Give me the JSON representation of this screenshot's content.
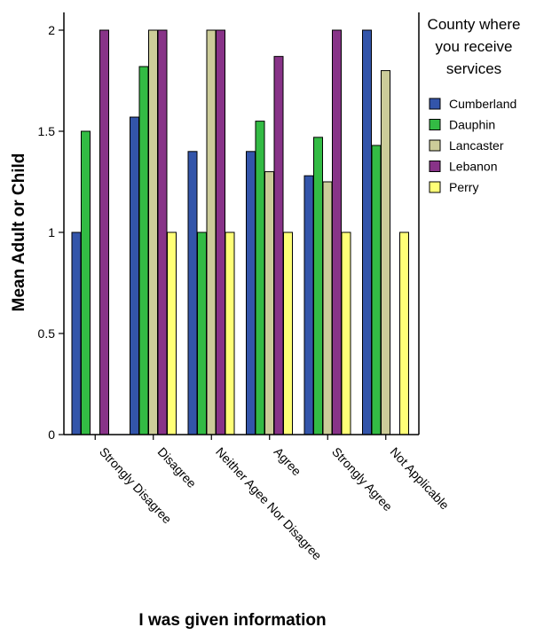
{
  "chart_data": {
    "type": "bar",
    "xlabel": "I was given information",
    "ylabel": "Mean Adult or Child",
    "ylim": [
      0,
      2.1
    ],
    "yticks": [
      "0",
      "0.5",
      "1",
      "1.5",
      "2"
    ],
    "categories": [
      "Strongly Disagree",
      "Disagree",
      "Neither Agee Nor Disagree",
      "Agree",
      "Strongly Agree",
      "Not Applicable"
    ],
    "legend": {
      "title_lines": [
        "County where",
        "you receive",
        "services"
      ],
      "placement": "right"
    },
    "series": [
      {
        "name": "Cumberland",
        "color": "#3355aa",
        "values": [
          1.0,
          1.57,
          1.4,
          1.4,
          1.28,
          2.0
        ]
      },
      {
        "name": "Dauphin",
        "color": "#33bb44",
        "values": [
          1.5,
          1.82,
          1.0,
          1.55,
          1.47,
          1.43
        ]
      },
      {
        "name": "Lancaster",
        "color": "#cccc99",
        "values": [
          null,
          2.0,
          2.0,
          1.3,
          1.25,
          1.8
        ]
      },
      {
        "name": "Lebanon",
        "color": "#883388",
        "values": [
          2.0,
          2.0,
          2.0,
          1.87,
          2.0,
          null
        ]
      },
      {
        "name": "Perry",
        "color": "#ffff77",
        "values": [
          null,
          1.0,
          1.0,
          1.0,
          1.0,
          1.0
        ]
      }
    ],
    "grid": false
  }
}
